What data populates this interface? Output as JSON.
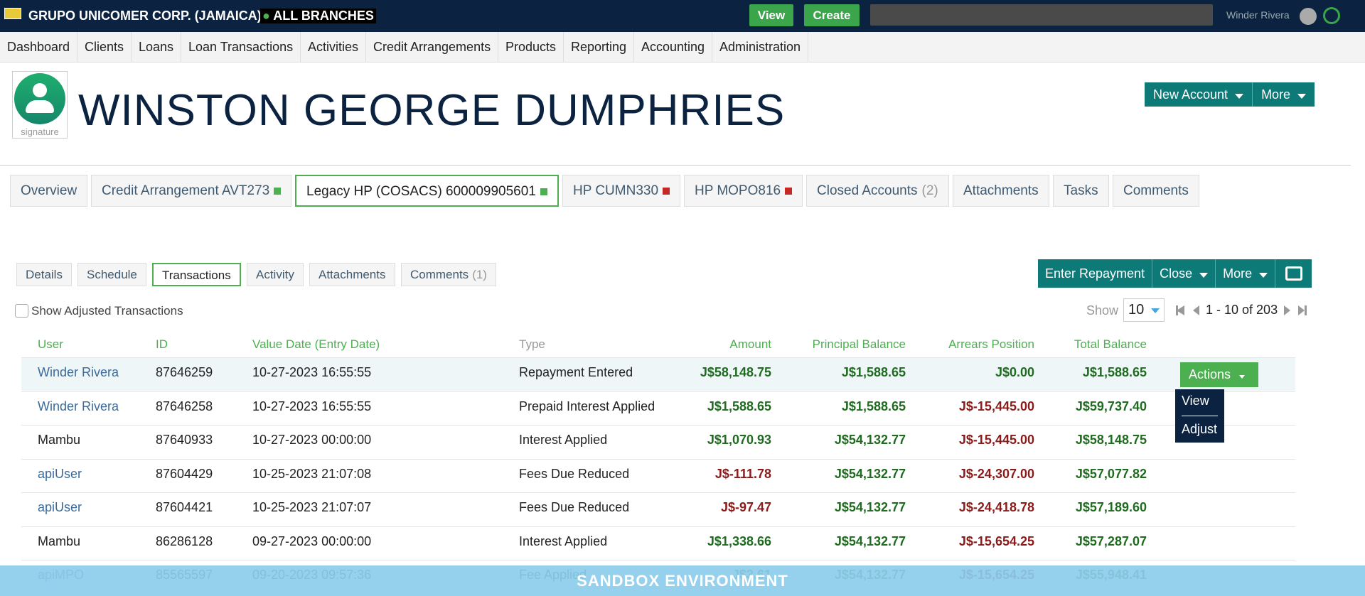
{
  "header": {
    "org": "GRUPO UNICOMER CORP. (JAMAICA)",
    "branch": "ALL BRANCHES",
    "buttons": [
      "View",
      "Create"
    ],
    "user": "Winder Rivera"
  },
  "nav": [
    "Dashboard",
    "Clients",
    "Loans",
    "Loan Transactions",
    "Activities",
    "Credit Arrangements",
    "Products",
    "Reporting",
    "Accounting",
    "Administration"
  ],
  "client": {
    "name": "WINSTON GEORGE DUMPHRIES",
    "avatar_label": "signature",
    "buttons": [
      "New Account",
      "More"
    ]
  },
  "tabs": [
    {
      "label": "Overview"
    },
    {
      "label": "Credit Arrangement AVT273",
      "status_color": "#4caf50"
    },
    {
      "label": "Legacy HP (COSACS) 600009905601",
      "status_color": "#4caf50",
      "active": true
    },
    {
      "label": "HP CUMN330",
      "status_color": "#c62828"
    },
    {
      "label": "HP MOPO816",
      "status_color": "#c62828"
    },
    {
      "label": "Closed Accounts",
      "count": "(2)"
    },
    {
      "label": "Attachments"
    },
    {
      "label": "Tasks"
    },
    {
      "label": "Comments"
    }
  ],
  "subtabs": [
    {
      "label": "Details"
    },
    {
      "label": "Schedule"
    },
    {
      "label": "Transactions",
      "active": true
    },
    {
      "label": "Activity"
    },
    {
      "label": "Attachments"
    },
    {
      "label": "Comments",
      "count": "(1)"
    }
  ],
  "account_actions": [
    "Enter Repayment",
    "Close",
    "More"
  ],
  "filter": {
    "checkbox": "Show Adjusted Transactions",
    "show_label": "Show",
    "page_size": "10",
    "range": "1 - 10 of 203"
  },
  "table": {
    "columns": [
      "User",
      "ID",
      "Value Date (Entry Date)",
      "Type",
      "Amount",
      "Principal Balance",
      "Arrears Position",
      "Total Balance"
    ],
    "rows": [
      {
        "user": "Winder Rivera",
        "user_is_link": true,
        "id": "87646259",
        "date": "10-27-2023 16:55:55",
        "type": "Repayment Entered",
        "amount": "J$58,148.75",
        "principal": "J$1,588.65",
        "arrears": "J$0.00",
        "total": "J$1,588.65"
      },
      {
        "user": "Winder Rivera",
        "user_is_link": true,
        "id": "87646258",
        "date": "10-27-2023 16:55:55",
        "type": "Prepaid Interest Applied",
        "amount": "J$1,588.65",
        "principal": "J$1,588.65",
        "arrears": "J$-15,445.00",
        "total": "J$59,737.40"
      },
      {
        "user": "Mambu",
        "user_is_link": false,
        "id": "87640933",
        "date": "10-27-2023 00:00:00",
        "type": "Interest Applied",
        "amount": "J$1,070.93",
        "principal": "J$54,132.77",
        "arrears": "J$-15,445.00",
        "total": "J$58,148.75"
      },
      {
        "user": "apiUser",
        "user_is_link": true,
        "id": "87604429",
        "date": "10-25-2023 21:07:08",
        "type": "Fees Due Reduced",
        "amount": "J$-111.78",
        "principal": "J$54,132.77",
        "arrears": "J$-24,307.00",
        "total": "J$57,077.82"
      },
      {
        "user": "apiUser",
        "user_is_link": true,
        "id": "87604421",
        "date": "10-25-2023 21:07:07",
        "type": "Fees Due Reduced",
        "amount": "J$-97.47",
        "principal": "J$54,132.77",
        "arrears": "J$-24,418.78",
        "total": "J$57,189.60"
      },
      {
        "user": "Mambu",
        "user_is_link": false,
        "id": "86286128",
        "date": "09-27-2023 00:00:00",
        "type": "Interest Applied",
        "amount": "J$1,338.66",
        "principal": "J$54,132.77",
        "arrears": "J$-15,654.25",
        "total": "J$57,287.07"
      },
      {
        "user": "apiMPO",
        "user_is_link": true,
        "id": "85565597",
        "date": "09-20-2023 09:57:36",
        "type": "Fee Applied",
        "amount": "J$3.61",
        "principal": "J$54,132.77",
        "arrears": "J$-15,654.25",
        "total": "J$55,948.41"
      }
    ],
    "row_button": "Actions",
    "menu": [
      "View",
      "Adjust"
    ]
  },
  "banner": "SANDBOX ENVIRONMENT"
}
